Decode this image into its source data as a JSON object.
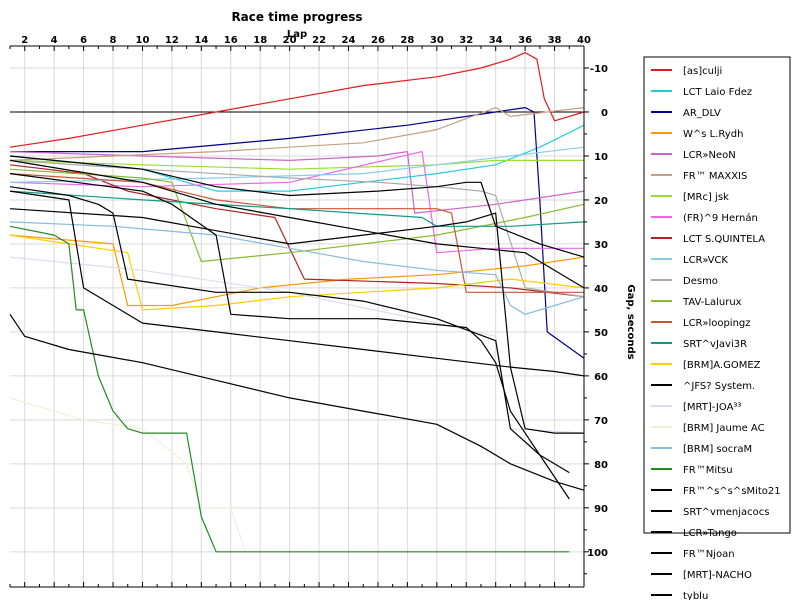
{
  "chart_data": {
    "type": "line",
    "title": "Race time progress",
    "xlabel": "Lap",
    "ylabel": "Gap, seconds",
    "xlim": [
      1,
      40
    ],
    "ylim": [
      -15,
      108
    ],
    "y_inverted": true,
    "x_ticks": [
      2,
      4,
      6,
      8,
      10,
      12,
      14,
      16,
      18,
      20,
      22,
      24,
      26,
      28,
      30,
      32,
      34,
      36,
      38,
      40
    ],
    "y_ticks": [
      -10,
      0,
      10,
      20,
      30,
      40,
      50,
      60,
      70,
      80,
      90,
      100
    ],
    "y_tick_labels": [
      "-10",
      "0",
      "10",
      "20",
      "30",
      "40",
      "50",
      "60",
      "70",
      "80",
      "90",
      "100"
    ],
    "grid": true,
    "legend_position": "right",
    "series": [
      {
        "name": "[as]culji",
        "color": "#e31a1c",
        "points": [
          [
            1,
            8
          ],
          [
            5,
            6
          ],
          [
            10,
            3
          ],
          [
            15,
            0
          ],
          [
            20,
            -3
          ],
          [
            25,
            -6
          ],
          [
            30,
            -8
          ],
          [
            33,
            -10
          ],
          [
            35,
            -12
          ],
          [
            36,
            -13.5
          ],
          [
            36.8,
            -12
          ],
          [
            37.3,
            -3
          ],
          [
            38,
            2
          ],
          [
            40,
            0
          ]
        ]
      },
      {
        "name": "LCT Laio Fdez",
        "color": "#22ccdd",
        "points": [
          [
            1,
            10
          ],
          [
            10,
            13
          ],
          [
            15,
            18
          ],
          [
            20,
            18
          ],
          [
            25,
            16
          ],
          [
            30,
            14
          ],
          [
            34,
            12
          ],
          [
            37,
            8
          ],
          [
            40,
            3
          ]
        ]
      },
      {
        "name": "AR_DLV",
        "color": "#00008b",
        "points": [
          [
            1,
            9
          ],
          [
            10,
            9
          ],
          [
            20,
            6
          ],
          [
            28,
            3
          ],
          [
            34,
            0
          ],
          [
            36,
            -1
          ],
          [
            36.6,
            0
          ],
          [
            37,
            20
          ],
          [
            37.5,
            50
          ],
          [
            40,
            56
          ]
        ]
      },
      {
        "name": "W^s L.Rydh",
        "color": "#ff9900",
        "points": [
          [
            1,
            28
          ],
          [
            8,
            30
          ],
          [
            9,
            44
          ],
          [
            12,
            44
          ],
          [
            18,
            40
          ],
          [
            24,
            38
          ],
          [
            30,
            37
          ],
          [
            36,
            35
          ],
          [
            40,
            33
          ]
        ]
      },
      {
        "name": "LCR»NeoN",
        "color": "#cc66cc",
        "points": [
          [
            1,
            9
          ],
          [
            10,
            10
          ],
          [
            20,
            11
          ],
          [
            26,
            10
          ],
          [
            28,
            9
          ],
          [
            28.5,
            23
          ],
          [
            34,
            21
          ],
          [
            40,
            18
          ]
        ]
      },
      {
        "name": "FR™ MAXXIS",
        "color": "#c8a080",
        "points": [
          [
            1,
            11
          ],
          [
            15,
            9
          ],
          [
            25,
            7
          ],
          [
            30,
            4
          ],
          [
            34,
            -1
          ],
          [
            35,
            1
          ],
          [
            40,
            -1
          ]
        ]
      },
      {
        "name": "[MRc] jsk",
        "color": "#99dd33",
        "points": [
          [
            1,
            11
          ],
          [
            10,
            12
          ],
          [
            20,
            13
          ],
          [
            30,
            12
          ],
          [
            34,
            11
          ],
          [
            40,
            11
          ]
        ]
      },
      {
        "name": "(FR)^9 Hernán",
        "color": "#ee66ee",
        "points": [
          [
            1,
            16
          ],
          [
            10,
            17
          ],
          [
            20,
            16
          ],
          [
            29,
            9
          ],
          [
            30,
            32
          ],
          [
            34,
            31
          ],
          [
            40,
            31
          ]
        ]
      },
      {
        "name": "LCT S.QUINTELA",
        "color": "#b22222",
        "points": [
          [
            1,
            12
          ],
          [
            6,
            14
          ],
          [
            9,
            18
          ],
          [
            15,
            22
          ],
          [
            19,
            24
          ],
          [
            21,
            38
          ],
          [
            30,
            39
          ],
          [
            35,
            40
          ],
          [
            40,
            42
          ]
        ]
      },
      {
        "name": "LCR»VCK",
        "color": "#88ccee",
        "points": [
          [
            1,
            16
          ],
          [
            15,
            15
          ],
          [
            25,
            14
          ],
          [
            30,
            12
          ],
          [
            35,
            10
          ],
          [
            40,
            8
          ]
        ]
      },
      {
        "name": "Desmo",
        "color": "#aaaaaa",
        "points": [
          [
            1,
            11
          ],
          [
            10,
            13
          ],
          [
            20,
            15
          ],
          [
            26,
            16
          ],
          [
            30,
            17
          ],
          [
            33,
            18
          ],
          [
            34,
            19
          ],
          [
            36,
            40
          ],
          [
            40,
            42
          ]
        ]
      },
      {
        "name": "TAV-Lalurux",
        "color": "#88bb33",
        "points": [
          [
            1,
            13
          ],
          [
            10,
            15
          ],
          [
            12,
            16
          ],
          [
            14,
            34
          ],
          [
            20,
            32
          ],
          [
            30,
            28
          ],
          [
            36,
            24
          ],
          [
            40,
            21
          ]
        ]
      },
      {
        "name": "LCR»loopingz",
        "color": "#cc5533",
        "points": [
          [
            1,
            14
          ],
          [
            10,
            16
          ],
          [
            15,
            20
          ],
          [
            20,
            22
          ],
          [
            30,
            22
          ],
          [
            31,
            23
          ],
          [
            32,
            41
          ],
          [
            36,
            41
          ],
          [
            40,
            41
          ]
        ]
      },
      {
        "name": "SRT^vJavi3R",
        "color": "#119988",
        "points": [
          [
            1,
            18
          ],
          [
            10,
            20
          ],
          [
            20,
            22
          ],
          [
            29,
            24
          ],
          [
            30,
            26
          ],
          [
            35,
            26
          ],
          [
            40,
            25
          ]
        ]
      },
      {
        "name": "[BRM]A.GOMEZ",
        "color": "#ffcc00",
        "points": [
          [
            1,
            28
          ],
          [
            9,
            32
          ],
          [
            10,
            45
          ],
          [
            15,
            44
          ],
          [
            20,
            42
          ],
          [
            30,
            40
          ],
          [
            35,
            38
          ],
          [
            40,
            40
          ]
        ]
      },
      {
        "name": "^JFS? System.",
        "color": "#000000",
        "points": [
          [
            1,
            10
          ],
          [
            10,
            13
          ],
          [
            15,
            17
          ],
          [
            20,
            19
          ],
          [
            26,
            18
          ],
          [
            30,
            17
          ],
          [
            32,
            16
          ],
          [
            33,
            16
          ],
          [
            34,
            26
          ],
          [
            37,
            30
          ],
          [
            40,
            33
          ]
        ]
      },
      {
        "name": "[MRT]-JOA³³",
        "color": "#ddddee",
        "points": [
          [
            1,
            33
          ],
          [
            10,
            36
          ],
          [
            20,
            41
          ],
          [
            30,
            48
          ],
          [
            34,
            51
          ],
          [
            35,
            72
          ],
          [
            40,
            73
          ]
        ]
      },
      {
        "name": "[BRM] Jaume AC",
        "color": "#f0f0d8",
        "points": [
          [
            1,
            65
          ],
          [
            6,
            70
          ],
          [
            10,
            72
          ],
          [
            13,
            80
          ],
          [
            14,
            90
          ],
          [
            16,
            90
          ],
          [
            17,
            100
          ]
        ]
      },
      {
        "name": "[BRM] socraM",
        "color": "#88bbdd",
        "points": [
          [
            1,
            25
          ],
          [
            8,
            26
          ],
          [
            15,
            28
          ],
          [
            20,
            31
          ],
          [
            25,
            34
          ],
          [
            30,
            36
          ],
          [
            34,
            37
          ],
          [
            35,
            44
          ],
          [
            36,
            46
          ],
          [
            38,
            44
          ],
          [
            40,
            42
          ]
        ]
      },
      {
        "name": "FR™Mitsu",
        "color": "#228b22",
        "points": [
          [
            1,
            26
          ],
          [
            4,
            28
          ],
          [
            5,
            30
          ],
          [
            5.5,
            45
          ],
          [
            6,
            45
          ],
          [
            7,
            60
          ],
          [
            8,
            68
          ],
          [
            9,
            72
          ],
          [
            10,
            73
          ],
          [
            13,
            73
          ],
          [
            14,
            92
          ],
          [
            15,
            100
          ],
          [
            39,
            100
          ]
        ]
      },
      {
        "name": "FR™^s^s^sMito21",
        "color": "#000000",
        "points": [
          [
            1,
            11
          ],
          [
            10,
            16
          ],
          [
            15,
            21
          ],
          [
            20,
            24
          ],
          [
            25,
            27
          ],
          [
            30,
            30
          ],
          [
            33,
            31
          ],
          [
            36,
            32
          ],
          [
            39,
            38
          ],
          [
            40,
            40
          ]
        ]
      },
      {
        "name": "SRT^vmenjacocs",
        "color": "#000000",
        "points": [
          [
            1,
            14
          ],
          [
            10,
            18
          ],
          [
            12,
            21
          ],
          [
            15,
            28
          ],
          [
            16,
            46
          ],
          [
            20,
            47
          ],
          [
            26,
            47
          ],
          [
            32,
            49
          ],
          [
            33,
            52
          ],
          [
            34,
            57
          ],
          [
            35,
            68
          ],
          [
            37,
            78
          ],
          [
            39,
            82
          ]
        ]
      },
      {
        "name": "LCR»Tango",
        "color": "#000000",
        "points": [
          [
            1,
            17
          ],
          [
            5,
            19
          ],
          [
            7,
            21
          ],
          [
            8,
            23
          ],
          [
            9,
            38
          ],
          [
            15,
            41
          ],
          [
            20,
            41
          ],
          [
            25,
            43
          ],
          [
            30,
            47
          ],
          [
            34,
            52
          ],
          [
            35,
            72
          ],
          [
            37,
            78
          ],
          [
            39,
            88
          ]
        ]
      },
      {
        "name": "FR™Njoan",
        "color": "#000000",
        "points": [
          [
            1,
            18
          ],
          [
            5,
            20
          ],
          [
            6,
            40
          ],
          [
            10,
            48
          ],
          [
            15,
            50
          ],
          [
            20,
            52
          ],
          [
            25,
            54
          ],
          [
            30,
            56
          ],
          [
            35,
            58
          ],
          [
            38,
            59
          ],
          [
            40,
            60
          ]
        ]
      },
      {
        "name": "[MRT]-NACHO",
        "color": "#000000",
        "points": [
          [
            1,
            46
          ],
          [
            2,
            51
          ],
          [
            5,
            54
          ],
          [
            10,
            57
          ],
          [
            15,
            61
          ],
          [
            20,
            65
          ],
          [
            25,
            68
          ],
          [
            30,
            71
          ],
          [
            33,
            76
          ],
          [
            35,
            80
          ],
          [
            38,
            84
          ],
          [
            40,
            86
          ]
        ]
      },
      {
        "name": "tyblu",
        "color": "#000000",
        "points": [
          [
            1,
            22
          ],
          [
            10,
            24
          ],
          [
            15,
            27
          ],
          [
            20,
            30
          ],
          [
            25,
            28
          ],
          [
            30,
            26
          ],
          [
            32,
            25
          ],
          [
            34,
            23
          ],
          [
            35,
            58
          ],
          [
            36,
            72
          ],
          [
            38,
            73
          ],
          [
            40,
            73
          ]
        ]
      }
    ]
  }
}
